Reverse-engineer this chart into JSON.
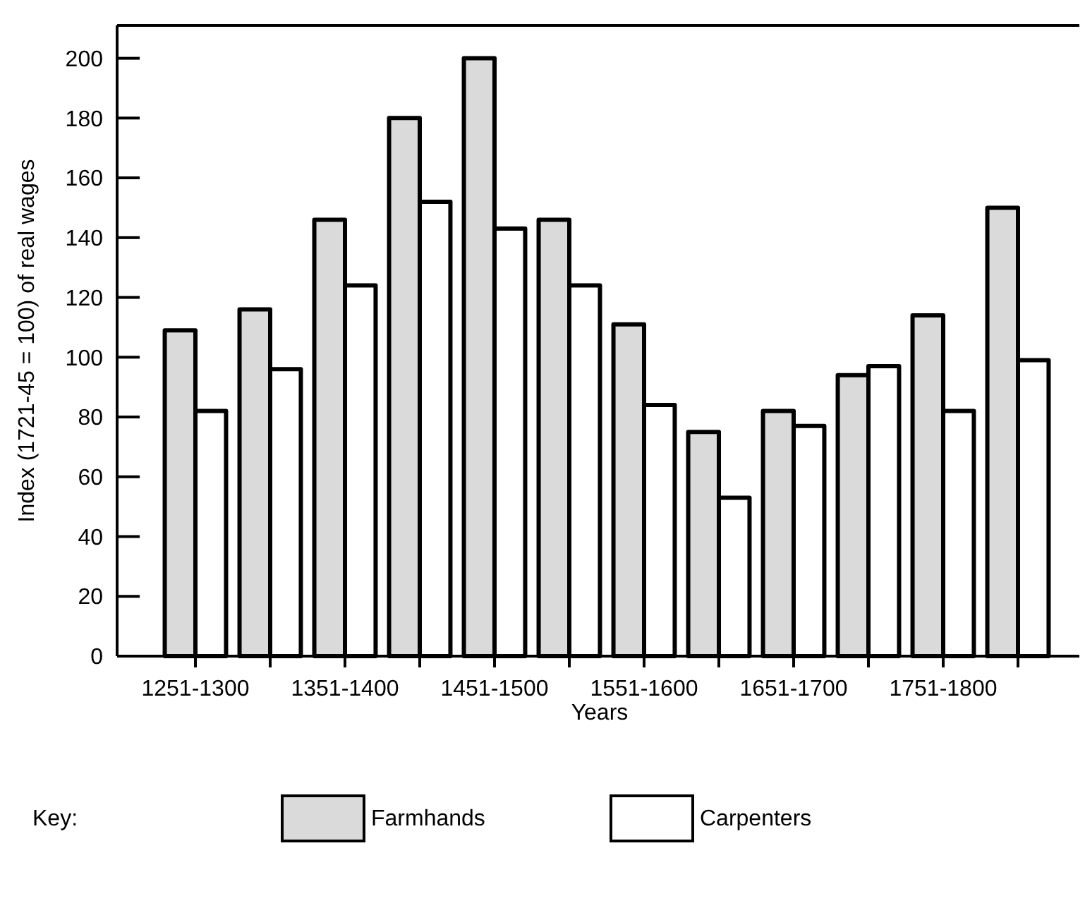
{
  "chart_data": {
    "type": "bar",
    "xlabel": "Years",
    "ylabel": "Index (1721-45 = 100) of real wages",
    "legend_title": "Key:",
    "categories": [
      "1251-1300",
      null,
      "1351-1400",
      null,
      "1451-1500",
      null,
      "1551-1600",
      null,
      "1651-1700",
      null,
      "1751-1800",
      null
    ],
    "series": [
      {
        "name": "Farmhands",
        "color": "#dadada",
        "values": [
          109,
          116,
          146,
          180,
          200,
          146,
          111,
          75,
          82,
          94,
          114,
          150
        ]
      },
      {
        "name": "Carpenters",
        "color": "#ffffff",
        "values": [
          82,
          96,
          124,
          152,
          143,
          124,
          84,
          53,
          77,
          97,
          82,
          99
        ]
      }
    ],
    "ylim": [
      0,
      211
    ],
    "yticks": [
      0,
      20,
      40,
      60,
      80,
      100,
      120,
      140,
      160,
      180,
      200
    ],
    "grid": false,
    "legend": "bottom"
  }
}
